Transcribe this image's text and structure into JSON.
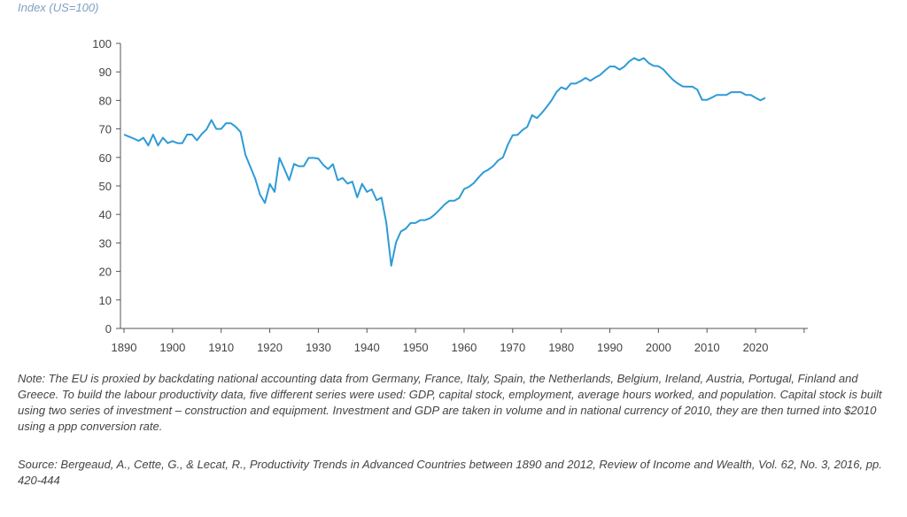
{
  "chart_data": {
    "type": "line",
    "ylabel": "Index (US=100)",
    "ylim": [
      0,
      100
    ],
    "xlim": [
      1890,
      2030
    ],
    "yticks": [
      0,
      10,
      20,
      30,
      40,
      50,
      60,
      70,
      80,
      90,
      100
    ],
    "xticks": [
      1890,
      1900,
      1910,
      1920,
      1930,
      1940,
      1950,
      1960,
      1970,
      1980,
      1990,
      2000,
      2010,
      2020
    ],
    "color": "#2e9bd6",
    "x_start": 1890,
    "values": [
      68,
      67.3,
      66.6,
      65.8,
      66.9,
      64.2,
      68,
      64.2,
      66.9,
      65,
      65.7,
      65,
      65,
      68,
      68,
      66,
      68.2,
      69.8,
      73.1,
      70,
      70,
      72,
      72,
      70.7,
      68.9,
      60.9,
      56.7,
      52.6,
      46.9,
      44,
      50.7,
      47.9,
      59.8,
      56,
      52,
      57.7,
      56.9,
      56.9,
      59.8,
      59.8,
      59.6,
      57.4,
      55.9,
      57.6,
      52,
      52.8,
      50.8,
      51.5,
      46,
      50.7,
      47.9,
      48.8,
      45,
      45.9,
      37,
      22,
      30.3,
      34,
      35,
      37,
      37,
      38,
      38,
      38.7,
      40,
      41.7,
      43.5,
      44.8,
      44.8,
      45.8,
      48.9,
      49.7,
      51,
      53,
      54.8,
      55.7,
      57,
      58.9,
      60,
      64.4,
      67.8,
      67.9,
      69.6,
      70.7,
      74.8,
      73.8,
      75.6,
      77.7,
      80,
      82.9,
      84.6,
      83.9,
      85.9,
      85.9,
      86.8,
      87.9,
      86.9,
      88,
      88.9,
      90.5,
      91.9,
      91.9,
      90.8,
      91.9,
      93.7,
      94.8,
      94,
      94.8,
      93.1,
      92.1,
      92,
      90.9,
      89,
      87.2,
      85.9,
      84.9,
      84.8,
      84.8,
      83.8,
      80.2,
      80.2,
      81,
      81.9,
      81.9,
      81.9,
      82.9,
      82.9,
      82.9,
      81.9,
      81.9,
      80.9,
      80,
      80.9
    ]
  },
  "notes": {
    "note": "Note: The EU is proxied by backdating national accounting data from Germany, France, Italy, Spain, the Netherlands, Belgium, Ireland, Austria, Portugal, Finland and Greece. To build the labour productivity data, five different series were used: GDP, capital stock, employment, average hours worked, and population. Capital stock is built using two series of investment – construction and equipment. Investment and GDP are taken in volume and in national currency of 2010, they are then turned into $2010 using a ppp conversion rate.",
    "source": "Source: Bergeaud, A., Cette, G., & Lecat, R., Productivity Trends in Advanced Countries between 1890 and 2012, Review of Income and Wealth, Vol. 62, No. 3, 2016, pp. 420-444"
  }
}
